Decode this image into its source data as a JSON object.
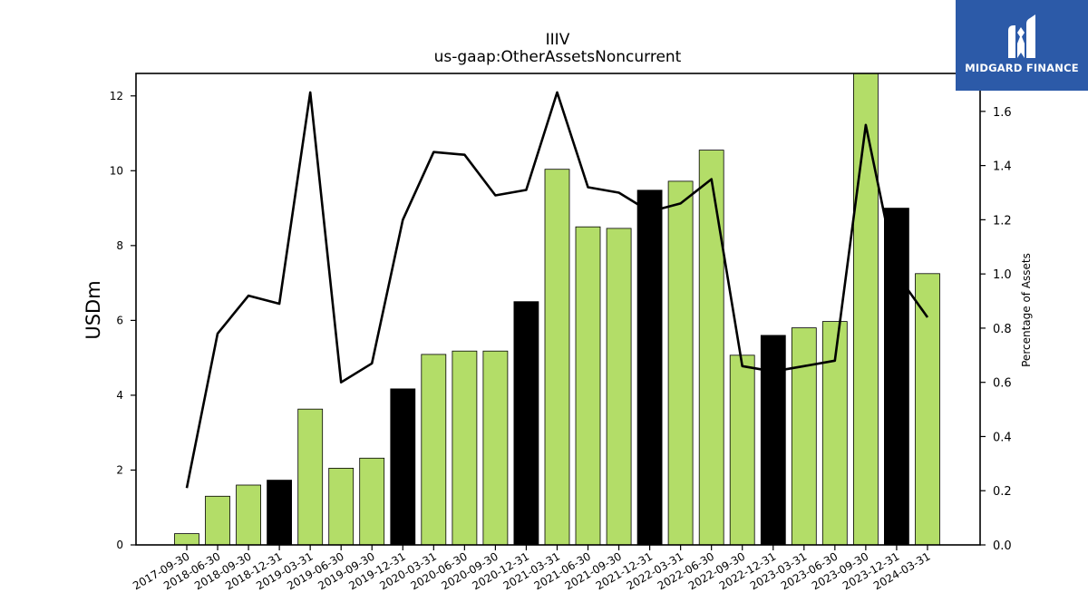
{
  "header": {
    "title_line1": "IIIV",
    "title_line2": "us-gaap:OtherAssetsNoncurrent"
  },
  "logo": {
    "text": "MIDGARD FINANCE",
    "background": "#2c5aa8"
  },
  "colors": {
    "bar_regular": "#b3dd68",
    "bar_highlight": "#000000",
    "line": "#000000"
  },
  "chart_data": {
    "type": "bar",
    "title": "IIIV\nus-gaap:OtherAssetsNoncurrent",
    "ylabel": "USDm",
    "y2label": "Percentage of Assets",
    "ylim": [
      0,
      12.6
    ],
    "y2lim": [
      0,
      1.74
    ],
    "yticks": [
      0,
      2,
      4,
      6,
      8,
      10,
      12
    ],
    "y2ticks": [
      "0.0",
      "0.2",
      "0.4",
      "0.6",
      "0.8",
      "1.0",
      "1.2",
      "1.4",
      "1.6"
    ],
    "categories": [
      "2017-09-30",
      "2018-06-30",
      "2018-09-30",
      "2018-12-31",
      "2019-03-31",
      "2019-06-30",
      "2019-09-30",
      "2019-12-31",
      "2020-03-31",
      "2020-06-30",
      "2020-09-30",
      "2020-12-31",
      "2021-03-31",
      "2021-06-30",
      "2021-09-30",
      "2021-12-31",
      "2022-03-31",
      "2022-06-30",
      "2022-09-30",
      "2022-12-31",
      "2023-03-31",
      "2023-06-30",
      "2023-09-30",
      "2023-12-31",
      "2024-03-31"
    ],
    "series": [
      {
        "kind": "bar",
        "axis": "left",
        "values": [
          0.3,
          1.3,
          1.6,
          1.73,
          3.63,
          2.05,
          2.32,
          4.17,
          5.09,
          5.18,
          5.18,
          6.5,
          10.04,
          8.5,
          8.46,
          9.48,
          9.72,
          10.55,
          5.07,
          5.6,
          5.8,
          5.97,
          12.65,
          9.0,
          7.25
        ],
        "highlight": [
          false,
          false,
          false,
          true,
          false,
          false,
          false,
          true,
          false,
          false,
          false,
          true,
          false,
          false,
          false,
          true,
          false,
          false,
          false,
          true,
          false,
          false,
          false,
          true,
          false
        ]
      },
      {
        "kind": "line",
        "axis": "right",
        "values": [
          0.21,
          0.78,
          0.92,
          0.89,
          1.67,
          0.6,
          0.67,
          1.2,
          1.45,
          1.44,
          1.29,
          1.31,
          1.67,
          1.32,
          1.3,
          1.23,
          1.26,
          1.35,
          0.66,
          0.64,
          0.66,
          0.68,
          1.55,
          1.0,
          0.84
        ]
      }
    ],
    "grid": false,
    "legend": "none"
  }
}
